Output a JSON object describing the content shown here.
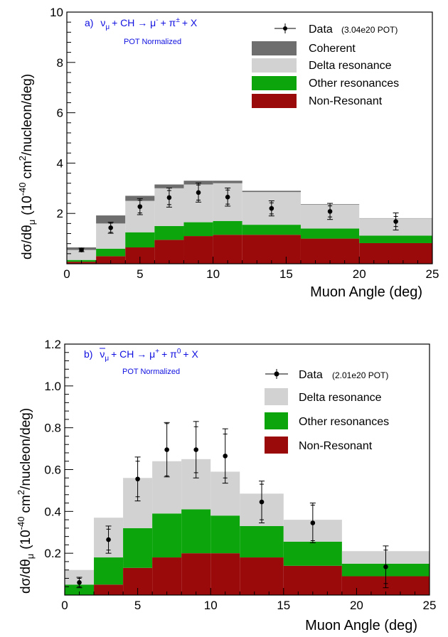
{
  "colors": {
    "coherent": "#6e6e6e",
    "delta": "#d2d2d2",
    "other": "#0ca60c",
    "nonres": "#9b0a0a",
    "data": "#000000",
    "annotation": "#1010e0"
  },
  "chart_data": [
    {
      "type": "bar",
      "subtype": "stacked-histogram",
      "process": {
        "tag": "a)",
        "nu": "ν",
        "mu_sub": "μ",
        "pre": "+ CH → μ",
        "mu_sup": "-",
        "mid": "+ π",
        "pi_sup": "±",
        "post": "+ X"
      },
      "annotation": "POT Normalized",
      "xlabel": "Muon Angle (deg)",
      "ylabel": {
        "a": "dσ/dθ",
        "sub": "μ",
        "b": "(10",
        "sup": "-40",
        "c": "cm",
        "sup2": "2",
        "d": "/nucleon/deg)"
      },
      "xlim": [
        0,
        25
      ],
      "ylim": [
        0,
        10
      ],
      "xticks": [
        "0",
        "5",
        "10",
        "15",
        "20",
        "25"
      ],
      "yticks": [
        "2",
        "4",
        "6",
        "8",
        "10"
      ],
      "ytick_values": [
        2,
        4,
        6,
        8,
        10
      ],
      "bin_edges": [
        0,
        2,
        4,
        6,
        8,
        10,
        12,
        16,
        20,
        25
      ],
      "series": [
        {
          "name": "Non-Resonant",
          "key": "nonres",
          "values": [
            0.08,
            0.3,
            0.65,
            0.95,
            1.1,
            1.15,
            1.15,
            1.0,
            0.82
          ]
        },
        {
          "name": "Other resonances",
          "key": "other",
          "values": [
            0.07,
            0.3,
            0.6,
            0.55,
            0.55,
            0.55,
            0.4,
            0.4,
            0.3
          ]
        },
        {
          "name": "Delta resonance",
          "key": "delta",
          "values": [
            0.4,
            1.0,
            1.25,
            1.5,
            1.5,
            1.5,
            1.3,
            0.95,
            0.68
          ]
        },
        {
          "name": "Coherent",
          "key": "coherent",
          "values": [
            0.1,
            0.32,
            0.2,
            0.15,
            0.15,
            0.1,
            0.05,
            0.02,
            0.01
          ]
        }
      ],
      "data": {
        "name": "Data",
        "pot": "(3.04e20 POT)",
        "x": [
          1,
          3,
          5,
          7,
          9,
          11,
          14,
          18,
          22.5
        ],
        "y": [
          0.55,
          1.43,
          2.27,
          2.63,
          2.83,
          2.65,
          2.2,
          2.08,
          1.68
        ],
        "err_inner": [
          0.05,
          0.18,
          0.25,
          0.28,
          0.3,
          0.28,
          0.22,
          0.22,
          0.2
        ],
        "err_outer": [
          0.07,
          0.22,
          0.32,
          0.38,
          0.38,
          0.36,
          0.3,
          0.32,
          0.34
        ]
      },
      "legend": [
        "Data",
        "Coherent",
        "Delta resonance",
        "Other resonances",
        "Non-Resonant"
      ]
    },
    {
      "type": "bar",
      "subtype": "stacked-histogram",
      "process": {
        "tag": "b)",
        "nu": "ν",
        "nubar": true,
        "mu_sub": "μ",
        "pre": "+ CH → μ",
        "mu_sup": "+",
        "mid": "+ π",
        "pi_sup": "0",
        "post": "+ X"
      },
      "annotation": "POT Normalized",
      "xlabel": "Muon Angle (deg)",
      "ylabel": {
        "a": "dσ/dθ",
        "sub": "μ",
        "b": "(10",
        "sup": "-40",
        "c": "cm",
        "sup2": "2",
        "d": "/nucleon/deg)"
      },
      "xlim": [
        0,
        25
      ],
      "ylim": [
        0,
        1.2
      ],
      "xticks": [
        "0",
        "5",
        "10",
        "15",
        "20",
        "25"
      ],
      "yticks": [
        "0.2",
        "0.4",
        "0.6",
        "0.8",
        "1.0",
        "1.2"
      ],
      "ytick_values": [
        0.2,
        0.4,
        0.6,
        0.8,
        1.0,
        1.2
      ],
      "bin_edges": [
        0,
        2,
        4,
        6,
        8,
        10,
        12,
        15,
        19,
        25
      ],
      "series": [
        {
          "name": "Non-Resonant",
          "key": "nonres",
          "values": [
            0.0,
            0.05,
            0.13,
            0.18,
            0.2,
            0.2,
            0.18,
            0.14,
            0.09
          ]
        },
        {
          "name": "Other resonances",
          "key": "other",
          "values": [
            0.05,
            0.13,
            0.19,
            0.21,
            0.21,
            0.18,
            0.15,
            0.115,
            0.06
          ]
        },
        {
          "name": "Delta resonance",
          "key": "delta",
          "values": [
            0.07,
            0.19,
            0.24,
            0.25,
            0.24,
            0.21,
            0.155,
            0.105,
            0.06
          ]
        }
      ],
      "data": {
        "name": "Data",
        "pot": "(2.01e20 POT)",
        "x": [
          1,
          3,
          5,
          7,
          9,
          11,
          13.5,
          17,
          22
        ],
        "y": [
          0.06,
          0.265,
          0.555,
          0.695,
          0.695,
          0.665,
          0.445,
          0.345,
          0.135
        ],
        "err_inner": [
          0.02,
          0.05,
          0.085,
          0.125,
          0.11,
          0.105,
          0.085,
          0.085,
          0.08
        ],
        "err_outer": [
          0.025,
          0.065,
          0.105,
          0.13,
          0.135,
          0.13,
          0.1,
          0.095,
          0.1
        ]
      },
      "legend": [
        "Data",
        "Delta resonance",
        "Other resonances",
        "Non-Resonant"
      ]
    }
  ]
}
